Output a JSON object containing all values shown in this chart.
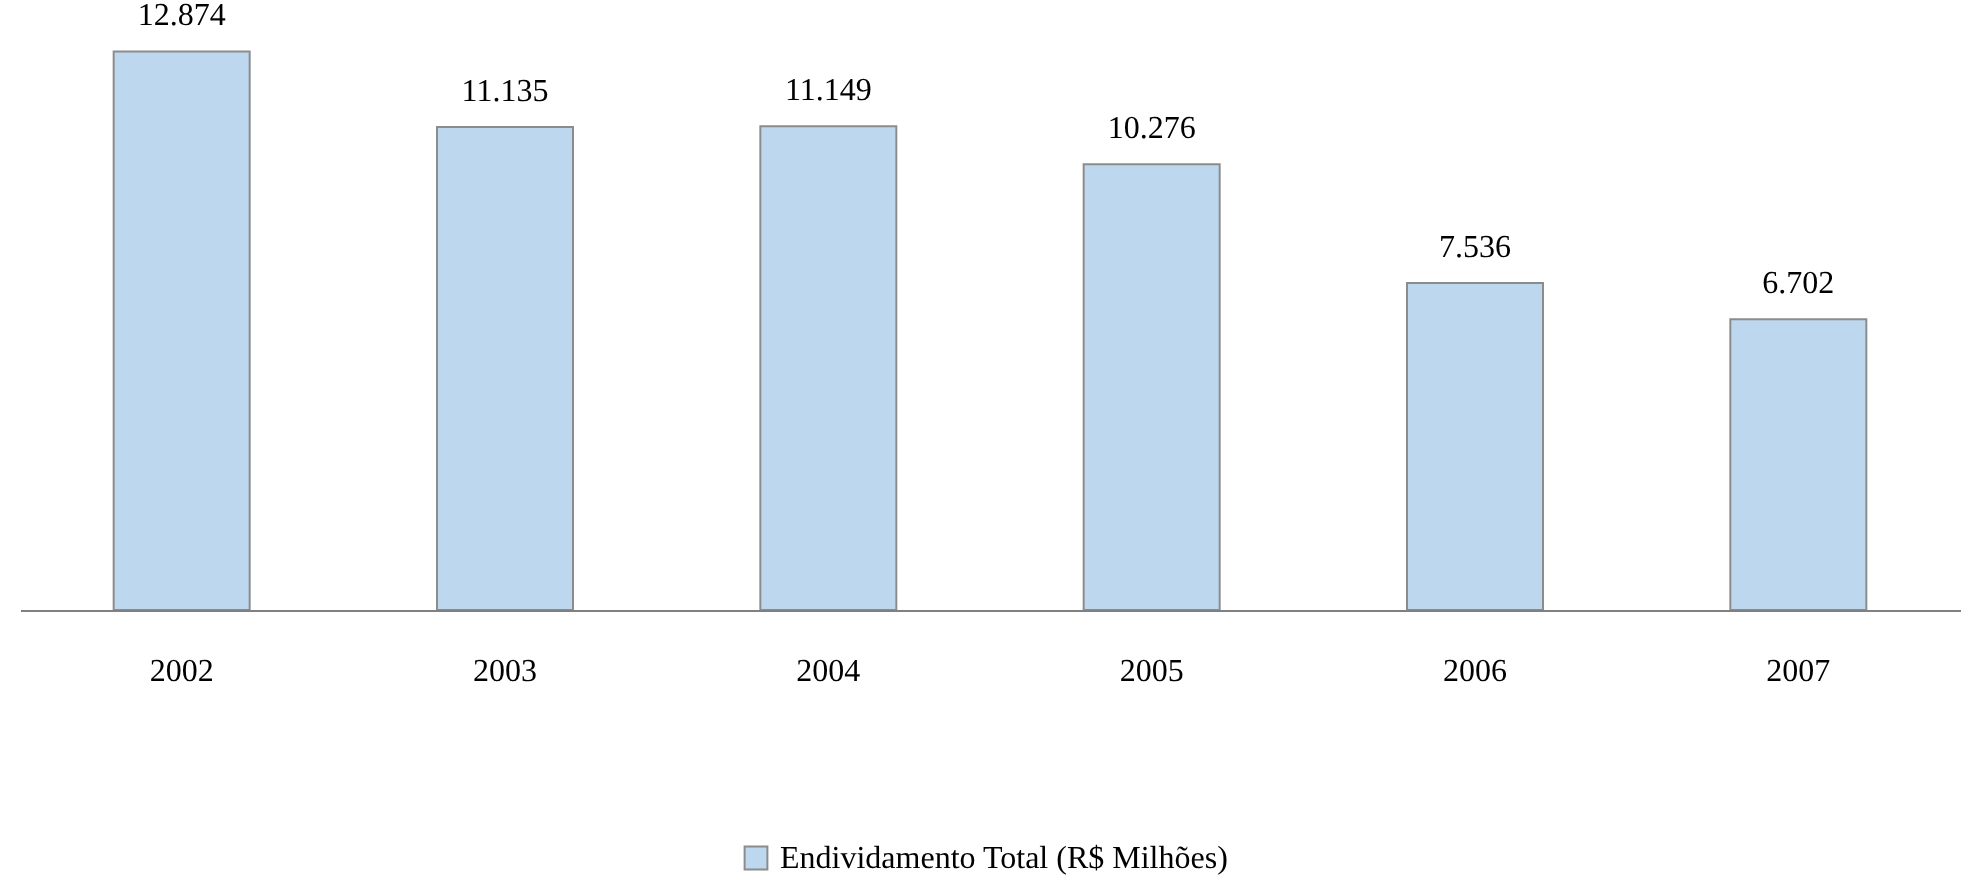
{
  "chart_data": {
    "type": "bar",
    "categories": [
      "2002",
      "2003",
      "2004",
      "2005",
      "2006",
      "2007"
    ],
    "series": [
      {
        "name": "Endividamento Total (R$ Milhões)",
        "color": "#bdd7ee",
        "values": [
          12874,
          11135,
          11149,
          10276,
          7536,
          6702
        ],
        "value_labels": [
          "12.874",
          "11.135",
          "11.149",
          "10.276",
          "7.536",
          "6.702"
        ]
      }
    ],
    "tick_labels": "x",
    "legend": "bottom"
  }
}
